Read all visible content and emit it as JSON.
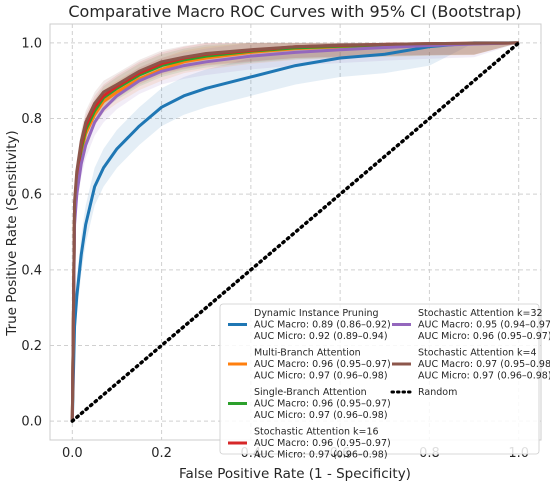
{
  "chart_data": {
    "type": "line",
    "title": "Comparative Macro ROC Curves with 95% CI (Bootstrap)",
    "xlabel": "False Positive Rate (1 - Specificity)",
    "ylabel": "True Positive Rate (Sensitivity)",
    "xlim": [
      -0.05,
      1.05
    ],
    "ylim": [
      -0.05,
      1.05
    ],
    "xticks": [
      "0.0",
      "0.2",
      "0.4",
      "0.6",
      "0.8",
      "1.0"
    ],
    "yticks": [
      "0.0",
      "0.2",
      "0.4",
      "0.6",
      "0.8",
      "1.0"
    ],
    "grid": true,
    "legend_position": "lower-right",
    "series": [
      {
        "name": "Dynamic Instance Pruning",
        "label_lines": [
          "Dynamic Instance Pruning",
          "AUC Macro: 0.89 (0.86–0.92)",
          "AUC Micro: 0.92 (0.89–0.94)"
        ],
        "color": "#1f77b4",
        "x": [
          0,
          0.005,
          0.01,
          0.02,
          0.03,
          0.05,
          0.07,
          0.1,
          0.15,
          0.2,
          0.25,
          0.3,
          0.4,
          0.5,
          0.6,
          0.7,
          0.8,
          0.9,
          1.0
        ],
        "y": [
          0,
          0.25,
          0.33,
          0.44,
          0.52,
          0.62,
          0.67,
          0.72,
          0.78,
          0.83,
          0.86,
          0.88,
          0.91,
          0.94,
          0.96,
          0.97,
          0.99,
          1.0,
          1.0
        ],
        "ci": 0.05
      },
      {
        "name": "Multi-Branch Attention",
        "label_lines": [
          "Multi-Branch Attention",
          "AUC Macro: 0.96 (0.95–0.97)",
          "AUC Micro: 0.97 (0.96–0.98)"
        ],
        "color": "#ff7f0e",
        "x": [
          0,
          0.005,
          0.01,
          0.02,
          0.03,
          0.05,
          0.07,
          0.1,
          0.15,
          0.2,
          0.25,
          0.3,
          0.4,
          0.5,
          0.6,
          0.7,
          0.8,
          0.9,
          1.0
        ],
        "y": [
          0,
          0.55,
          0.63,
          0.71,
          0.76,
          0.81,
          0.845,
          0.87,
          0.905,
          0.93,
          0.95,
          0.96,
          0.975,
          0.985,
          0.99,
          0.993,
          0.996,
          0.998,
          1.0
        ],
        "ci": 0.03
      },
      {
        "name": "Single-Branch Attention",
        "label_lines": [
          "Single-Branch Attention",
          "AUC Macro: 0.96 (0.95–0.97)",
          "AUC Micro: 0.97 (0.96–0.98)"
        ],
        "color": "#2ca02c",
        "x": [
          0,
          0.005,
          0.01,
          0.02,
          0.03,
          0.05,
          0.07,
          0.1,
          0.15,
          0.2,
          0.25,
          0.3,
          0.4,
          0.5,
          0.6,
          0.7,
          0.8,
          0.9,
          1.0
        ],
        "y": [
          0,
          0.56,
          0.64,
          0.72,
          0.77,
          0.82,
          0.855,
          0.88,
          0.915,
          0.94,
          0.955,
          0.965,
          0.978,
          0.987,
          0.991,
          0.994,
          0.997,
          0.999,
          1.0
        ],
        "ci": 0.03
      },
      {
        "name": "Stochastic Attention k=16",
        "label_lines": [
          "Stochastic Attention k=16",
          "AUC Macro: 0.96 (0.95–0.97)",
          "AUC Micro: 0.97 (0.96–0.98)"
        ],
        "color": "#d62728",
        "x": [
          0,
          0.005,
          0.01,
          0.02,
          0.03,
          0.05,
          0.07,
          0.1,
          0.15,
          0.2,
          0.25,
          0.3,
          0.4,
          0.5,
          0.6,
          0.7,
          0.8,
          0.9,
          1.0
        ],
        "y": [
          0,
          0.57,
          0.65,
          0.73,
          0.78,
          0.83,
          0.86,
          0.885,
          0.92,
          0.945,
          0.96,
          0.97,
          0.98,
          0.99,
          0.993,
          0.996,
          0.998,
          0.999,
          1.0
        ],
        "ci": 0.03
      },
      {
        "name": "Stochastic Attention k=32",
        "label_lines": [
          "Stochastic Attention k=32",
          "AUC Macro: 0.95 (0.94–0.97)",
          "AUC Micro: 0.96 (0.95–0.97)"
        ],
        "color": "#9467bd",
        "x": [
          0,
          0.005,
          0.01,
          0.02,
          0.03,
          0.05,
          0.07,
          0.1,
          0.15,
          0.2,
          0.25,
          0.3,
          0.4,
          0.5,
          0.6,
          0.7,
          0.8,
          0.9,
          1.0
        ],
        "y": [
          0,
          0.52,
          0.6,
          0.68,
          0.73,
          0.79,
          0.825,
          0.86,
          0.9,
          0.925,
          0.94,
          0.95,
          0.965,
          0.975,
          0.982,
          0.988,
          0.993,
          0.997,
          1.0
        ],
        "ci": 0.035
      },
      {
        "name": "Stochastic Attention k=4",
        "label_lines": [
          "Stochastic Attention k=4",
          "AUC Macro: 0.97 (0.95–0.98)",
          "AUC Micro: 0.97 (0.96–0.98)"
        ],
        "color": "#8c564b",
        "x": [
          0,
          0.005,
          0.01,
          0.02,
          0.03,
          0.05,
          0.07,
          0.1,
          0.15,
          0.2,
          0.25,
          0.3,
          0.4,
          0.5,
          0.6,
          0.7,
          0.8,
          0.9,
          1.0
        ],
        "y": [
          0,
          0.58,
          0.66,
          0.74,
          0.79,
          0.84,
          0.87,
          0.89,
          0.925,
          0.95,
          0.962,
          0.972,
          0.982,
          0.99,
          0.994,
          0.996,
          0.998,
          0.999,
          1.0
        ],
        "ci": 0.03
      },
      {
        "name": "Random",
        "label_lines": [
          "Random"
        ],
        "color": "#000000",
        "dashed": true,
        "x": [
          0,
          1
        ],
        "y": [
          0,
          1
        ]
      }
    ],
    "legend_columns": [
      [
        0,
        1,
        2,
        3
      ],
      [
        4,
        5,
        6
      ]
    ]
  }
}
